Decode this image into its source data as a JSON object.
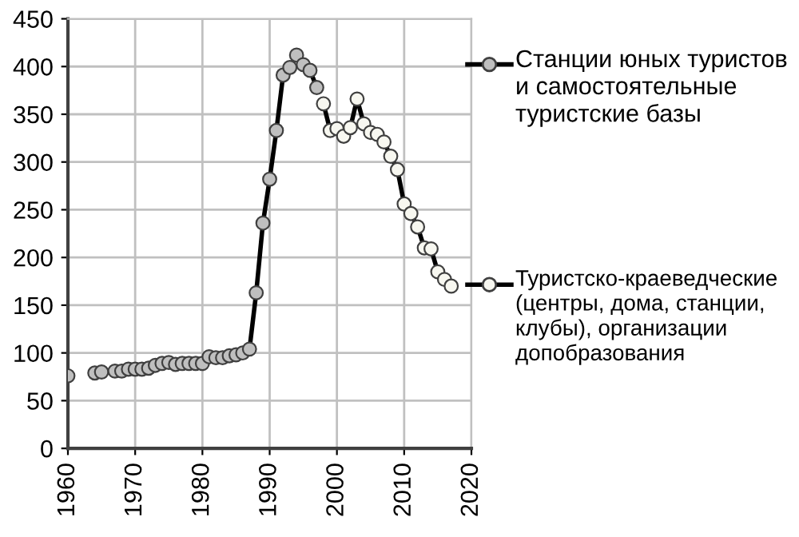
{
  "chart_data": {
    "type": "line",
    "xlim": [
      1960,
      2020
    ],
    "xticks": [
      1960,
      1970,
      1980,
      1990,
      2000,
      2010,
      2020
    ],
    "ylim": [
      0,
      450
    ],
    "yticks": [
      0,
      50,
      100,
      150,
      200,
      250,
      300,
      350,
      400,
      450
    ],
    "grid": true,
    "legend": "right",
    "marker": "circle",
    "line_style": "solid",
    "series": [
      {
        "name": "Станции юных туристов и самостоятельные туристские базы",
        "color": "#bfbfbf",
        "x": [
          1960,
          1961,
          1964,
          1965,
          1967,
          1968,
          1969,
          1970,
          1971,
          1972,
          1973,
          1974,
          1975,
          1976,
          1977,
          1978,
          1979,
          1980,
          1981,
          1982,
          1983,
          1984,
          1985,
          1986,
          1987,
          1988,
          1989,
          1990,
          1991,
          1992,
          1993,
          1994,
          1995,
          1996,
          1997
        ],
        "values": [
          76,
          null,
          79,
          80,
          81,
          81,
          83,
          83,
          83,
          84,
          87,
          89,
          90,
          88,
          89,
          89,
          89,
          89,
          96,
          95,
          95,
          97,
          98,
          100,
          104,
          163,
          236,
          282,
          333,
          391,
          399,
          412,
          402,
          396,
          378
        ]
      },
      {
        "name": "Туристско-краеведческие  (центры, дома, станции, клубы), организации допобразования",
        "color": "#f7f7f0",
        "x": [
          1998,
          1999,
          2000,
          2001,
          2002,
          2003,
          2004,
          2005,
          2006,
          2007,
          2008,
          2009,
          2010,
          2011,
          2012,
          2013,
          2014,
          2015,
          2016,
          2017
        ],
        "values": [
          361,
          333,
          335,
          327,
          336,
          366,
          340,
          331,
          329,
          321,
          306,
          292,
          256,
          246,
          232,
          210,
          209,
          185,
          177,
          170
        ]
      }
    ]
  }
}
